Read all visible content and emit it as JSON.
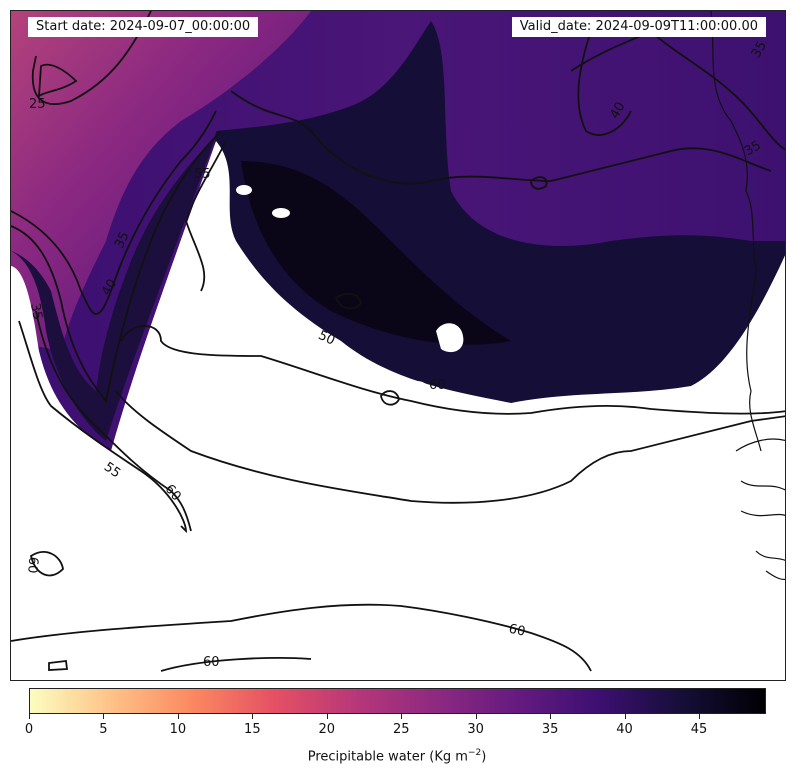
{
  "header": {
    "start_date": "Start date: 2024-09-07_00:00:00",
    "valid_date": "Valid_date: 2024-09-09T11:00:00.00"
  },
  "colorbar": {
    "label": "Precipitable water (Kg m",
    "label_sup": "−2",
    "label_close": ")",
    "range": [
      0,
      49.5
    ],
    "ticks": [
      "0",
      "5",
      "10",
      "15",
      "20",
      "25",
      "30",
      "35",
      "40",
      "45"
    ],
    "colormap": "magma_r",
    "colors": [
      "#fcfdbf",
      "#fec287",
      "#fb8861",
      "#e55064",
      "#b73779",
      "#8c2981",
      "#641a80",
      "#3b0f70",
      "#150e37",
      "#000004"
    ]
  },
  "contour_labels": [
    "25",
    "35",
    "40",
    "35",
    "55",
    "60",
    "55",
    "60",
    "60",
    "60",
    "60",
    "40",
    "35",
    "35",
    "50"
  ],
  "map": {
    "field": "precipitable water",
    "saturated_region_color": "#ffffff",
    "moist_core_color": "#120a25",
    "dry_region_color": "#b3437a",
    "mid_region_color": "#4a1678"
  }
}
